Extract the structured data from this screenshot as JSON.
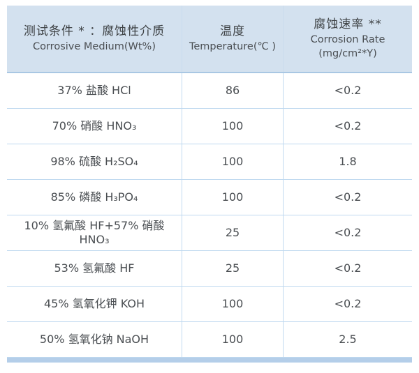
{
  "colors": {
    "header_bg": "#d3e1ef",
    "grid_line": "#bed8ef",
    "header_divider": "#a9c7e3",
    "bottom_bar": "#b4cee9",
    "text": "#4a4e52"
  },
  "table": {
    "header": {
      "medium": {
        "zh": "测试条件 * ：腐蚀性介质",
        "en": "Corrosive Medium(Wt%)"
      },
      "temperature": {
        "zh": "温度",
        "en": "Temperature(℃ )"
      },
      "rate": {
        "zh": "腐蚀速率 **",
        "en": "Corrosion Rate",
        "unit": "(mg/cm²*Y)"
      }
    },
    "rows": [
      {
        "medium": "37% 盐酸 HCl",
        "temperature": "86",
        "rate": "<0.2"
      },
      {
        "medium": "70% 硝酸 HNO₃",
        "temperature": "100",
        "rate": "<0.2"
      },
      {
        "medium": "98% 硫酸 H₂SO₄",
        "temperature": "100",
        "rate": "1.8"
      },
      {
        "medium": "85% 磷酸 H₃PO₄",
        "temperature": "100",
        "rate": "<0.2"
      },
      {
        "medium": [
          "10% 氢氟酸 HF+57% 硝酸",
          "HNO₃"
        ],
        "temperature": "25",
        "rate": "<0.2"
      },
      {
        "medium": "53% 氢氟酸 HF",
        "temperature": "25",
        "rate": "<0.2"
      },
      {
        "medium": "45% 氢氧化钾 KOH",
        "temperature": "100",
        "rate": "<0.2"
      },
      {
        "medium": "50% 氢氧化钠 NaOH",
        "temperature": "100",
        "rate": "2.5"
      }
    ]
  },
  "chart_data": {
    "type": "table",
    "title": "",
    "columns": [
      "测试条件 * ：腐蚀性介质 Corrosive Medium(Wt%)",
      "温度 Temperature(℃)",
      "腐蚀速率 ** Corrosion Rate (mg/cm²*Y)"
    ],
    "rows": [
      [
        "37% 盐酸 HCl",
        "86",
        "<0.2"
      ],
      [
        "70% 硝酸 HNO₃",
        "100",
        "<0.2"
      ],
      [
        "98% 硫酸 H₂SO₄",
        "100",
        "1.8"
      ],
      [
        "85% 磷酸 H₃PO₄",
        "100",
        "<0.2"
      ],
      [
        "10% 氢氟酸 HF+57% 硝酸 HNO₃",
        "25",
        "<0.2"
      ],
      [
        "53% 氢氟酸 HF",
        "25",
        "<0.2"
      ],
      [
        "45% 氢氧化钾 KOH",
        "100",
        "<0.2"
      ],
      [
        "50% 氢氧化钠 NaOH",
        "100",
        "2.5"
      ]
    ]
  }
}
